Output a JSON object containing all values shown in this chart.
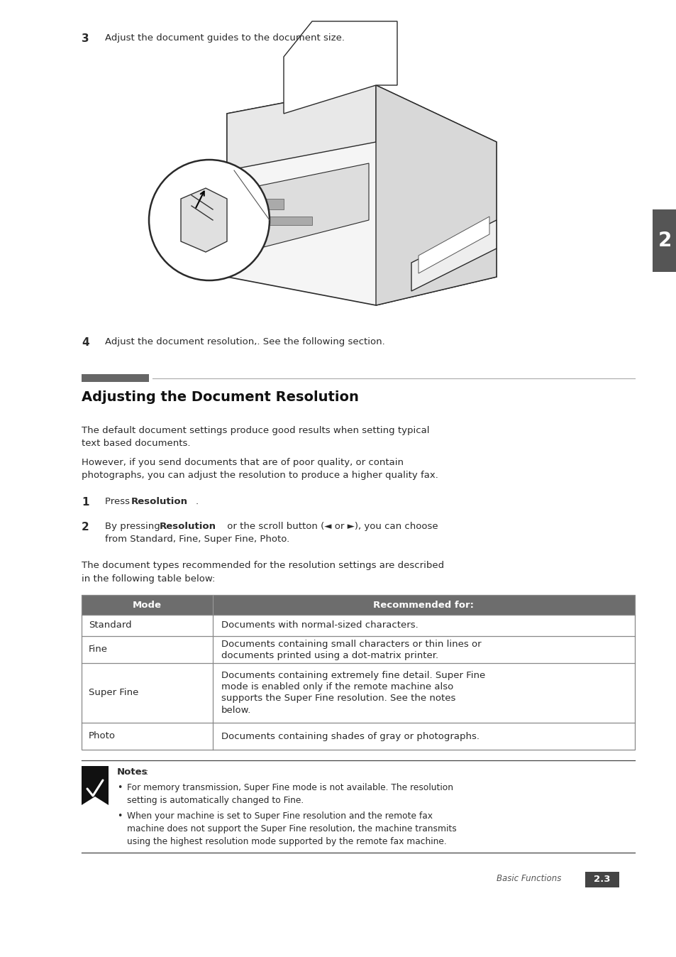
{
  "bg_color": "#ffffff",
  "text_color": "#2a2a2a",
  "step3_number": "3",
  "step3_text": "Adjust the document guides to the document size.",
  "step4_number": "4",
  "step4_text": "Adjust the document resolution,. See the following section.",
  "section_title": "Adjusting the Document Resolution",
  "para1": "The default document settings produce good results when setting typical\ntext based documents.",
  "para2": "However, if you send documents that are of poor quality, or contain\nphotographs, you can adjust the resolution to produce a higher quality fax.",
  "step1_label": "1",
  "step1_pre": "Press ",
  "step1_bold": "Resolution",
  "step1_post": ".",
  "step2_label": "2",
  "step2_pre": "By pressing ",
  "step2_bold": "Resolution",
  "step2_post": " or the scroll button (◄ or ►), you can choose",
  "step2_line2": "from Standard, Fine, Super Fine, Photo.",
  "para3": "The document types recommended for the resolution settings are described\nin the following table below:",
  "table_header_mode": "Mode",
  "table_header_rec": "Recommended for:",
  "table_header_bg": "#6d6d6d",
  "table_header_fg": "#ffffff",
  "table_border": "#888888",
  "table_rows": [
    [
      "Standard",
      "Documents with normal-sized characters."
    ],
    [
      "Fine",
      "Documents containing small characters or thin lines or\ndocuments printed using a dot-matrix printer."
    ],
    [
      "Super Fine",
      "Documents containing extremely fine detail. Super Fine\nmode is enabled only if the remote machine also\nsupports the Super Fine resolution. See the notes\nbelow."
    ],
    [
      "Photo",
      "Documents containing shades of gray or photographs."
    ]
  ],
  "note_bold": "Notes",
  "note_colon": ":",
  "note1": "For memory transmission, Super Fine mode is not available. The resolution\nsetting is automatically changed to Fine.",
  "note2": "When your machine is set to Super Fine resolution and the remote fax\nmachine does not support the Super Fine resolution, the machine transmits\nusing the highest resolution mode supported by the remote fax machine.",
  "footer_label": "Basic Functions",
  "footer_page": "2.3",
  "tab_bg": "#555555",
  "tab_fg": "#ffffff",
  "tab_num": "2",
  "hbar_bg": "#666666",
  "hline_color": "#aaaaaa",
  "sep_color": "#444444"
}
